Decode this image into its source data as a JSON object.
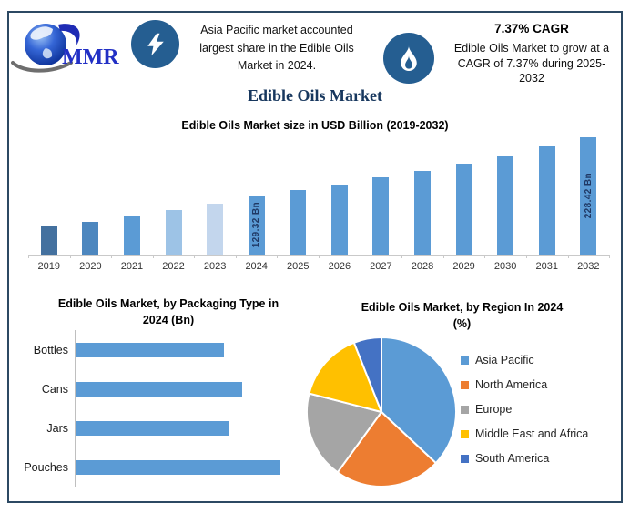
{
  "infographic": {
    "brand": "MMR",
    "border_color": "#2c4963",
    "accent_blue": "#5b9bd5",
    "icon_circle_color": "#255e91"
  },
  "header": {
    "logo_text": "MMR",
    "left_callout": {
      "icon": "lightning-icon",
      "lines": [
        "Asia Pacific market accounted",
        "largest share in the Edible Oils",
        "Market in 2024."
      ]
    },
    "right_callout": {
      "icon": "flame-icon",
      "heading": "7.37% CAGR",
      "lines": [
        "Edible Oils Market to grow at a",
        "CAGR of 7.37% during 2025-",
        "2032"
      ]
    },
    "title": "Edible Oils Market"
  },
  "chart_data": [
    {
      "id": "market-size-by-year",
      "type": "bar",
      "title": "Edible Oils Market size in USD Billion (2019-2032)",
      "unit": "USD Billion",
      "categories": [
        "2019",
        "2020",
        "2021",
        "2022",
        "2023",
        "2024",
        "2025",
        "2026",
        "2027",
        "2028",
        "2029",
        "2030",
        "2031",
        "2032"
      ],
      "values": [
        77.5,
        85.4,
        95.5,
        105.0,
        115.8,
        129.32,
        138.85,
        149.08,
        160.07,
        171.87,
        184.54,
        198.14,
        212.74,
        228.42
      ],
      "value_labels": {
        "2024": "129.32 Bn",
        "2032": "228.42 Bn"
      },
      "bar_colors": [
        "#44719f",
        "#4d87bf",
        "#5b9bd5",
        "#9dc3e6",
        "#c3d6ed",
        "#5b9bd5",
        "#5b9bd5",
        "#5b9bd5",
        "#5b9bd5",
        "#5b9bd5",
        "#5b9bd5",
        "#5b9bd5",
        "#5b9bd5",
        "#5b9bd5"
      ],
      "ylim": [
        30,
        230
      ],
      "grid": false,
      "legend": false
    },
    {
      "id": "packaging-type-2024",
      "type": "bar",
      "orientation": "horizontal",
      "title": "Edible Oils Market, by Packaging Type in 2024 (Bn)",
      "title_lines": [
        "Edible Oils Market, by Packaging Type in",
        "2024 (Bn)"
      ],
      "unit": "Bn",
      "categories": [
        "Bottles",
        "Cans",
        "Jars",
        "Pouches"
      ],
      "values": [
        28.5,
        32,
        29.4,
        39.4
      ],
      "bar_color": "#5b9bd5",
      "grid": false,
      "legend": false
    },
    {
      "id": "region-share-2024",
      "type": "pie",
      "title": "Edible Oils Market, by Region In 2024 (%)",
      "title_lines": [
        "Edible Oils Market, by Region In 2024",
        "(%)"
      ],
      "labels": [
        "Asia Pacific",
        "North America",
        "Europe",
        "Middle East and Africa",
        "South America"
      ],
      "values": [
        37,
        23,
        19,
        15,
        6
      ],
      "colors": [
        "#5b9bd5",
        "#ed7d31",
        "#a5a5a5",
        "#ffc000",
        "#4472c4"
      ],
      "legend_position": "right",
      "start_angle_deg": 0,
      "direction": "clockwise"
    }
  ]
}
